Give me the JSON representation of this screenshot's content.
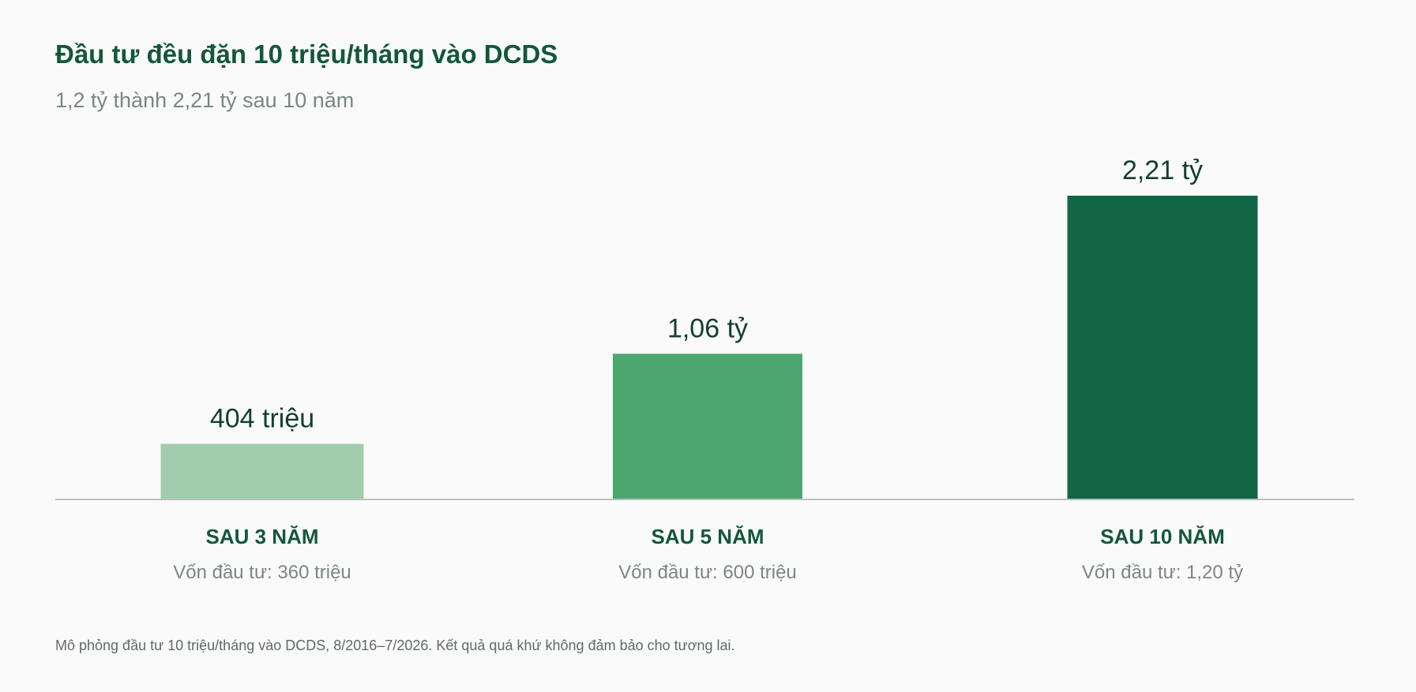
{
  "chart_data": {
    "type": "bar",
    "title": "Đầu tư đều đặn 10 triệu/tháng vào DCDS",
    "subtitle": "1,2 tỷ thành 2,21 tỷ sau 10 năm",
    "unit": "tỷ",
    "categories": [
      "SAU 3 NĂM",
      "SAU 5 NĂM",
      "SAU 10 NĂM"
    ],
    "values": [
      0.404,
      1.06,
      2.21
    ],
    "value_labels": [
      "404 triệu",
      "1,06 tỷ",
      "2,21 tỷ"
    ],
    "sublabels": [
      "Vốn đầu tư: 360 triệu",
      "Vốn đầu tư: 600 triệu",
      "Vốn đầu tư: 1,20 tỷ"
    ],
    "bar_colors": [
      "#a1cdae",
      "#4ca76e",
      "#136645"
    ],
    "ylim": [
      0,
      2.21
    ],
    "grid": false,
    "xlabel": "",
    "ylabel": "",
    "footnote": "Mô phỏng đầu tư 10 triệu/tháng vào DCDS, 8/2016–7/2026. Kết quả quá khứ không đảm bảo cho tương lai."
  },
  "colors": {
    "title": "#13573a",
    "subtitle": "#7a8784",
    "value_label": "#133f2d",
    "baseline": "#b7c2bf"
  }
}
